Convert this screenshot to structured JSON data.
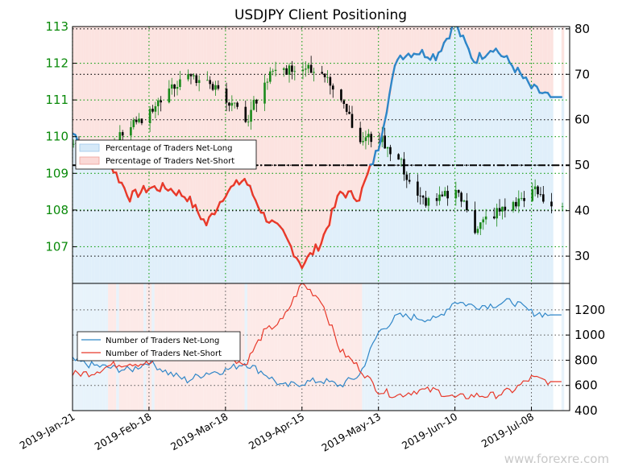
{
  "title": "USDJPY Client Positioning",
  "watermark": "www.forexre.com",
  "colors": {
    "long": "#2f86c8",
    "short": "#e8392a",
    "up_candle": "#1a8a1a",
    "down_candle": "#000000",
    "left_ticks": "#0a8a0a",
    "long_fill": "#d6e9f8",
    "short_fill": "#fbd9d6"
  },
  "x_labels": [
    "2019-Jan-21",
    "2019-Feb-18",
    "2019-Mar-18",
    "2019-Apr-15",
    "2019-May-13",
    "2019-Jun-10",
    "2019-Jul-08"
  ],
  "chart_data": [
    {
      "type": "line",
      "title": "USDJPY Client Positioning",
      "grid": true,
      "legend_position": "upper-left",
      "x_dates": [
        "2019-01-21",
        "2019-01-28",
        "2019-02-04",
        "2019-02-11",
        "2019-02-18",
        "2019-02-25",
        "2019-03-04",
        "2019-03-11",
        "2019-03-18",
        "2019-03-25",
        "2019-04-01",
        "2019-04-08",
        "2019-04-15",
        "2019-04-22",
        "2019-04-29",
        "2019-05-06",
        "2019-05-13",
        "2019-05-20",
        "2019-05-27",
        "2019-06-03",
        "2019-06-10",
        "2019-06-17",
        "2019-06-24",
        "2019-07-01",
        "2019-07-08",
        "2019-07-15"
      ],
      "left_axis": {
        "label": "",
        "ylim": [
          106,
          113
        ],
        "ticks": [
          107,
          108,
          109,
          110,
          111,
          112,
          113
        ]
      },
      "right_axis": {
        "label": "",
        "ylim": [
          24,
          80.5
        ],
        "ticks": [
          30,
          40,
          50,
          60,
          70,
          80
        ]
      },
      "series": [
        {
          "name": "Percentage of Traders Net-Long",
          "axis": "right",
          "values": [
            57,
            54,
            50,
            43,
            45,
            45,
            43,
            37,
            44,
            47,
            39,
            35,
            28,
            33,
            44,
            43,
            54,
            74,
            75,
            74,
            81,
            73,
            76,
            72,
            67,
            65
          ]
        },
        {
          "name": "Percentage of Traders Net-Short",
          "axis": "right",
          "values": [
            43,
            46,
            50,
            57,
            55,
            55,
            57,
            63,
            56,
            53,
            61,
            65,
            72,
            67,
            56,
            57,
            46,
            26,
            25,
            26,
            19,
            27,
            24,
            28,
            33,
            35
          ]
        },
        {
          "name": "USDJPY",
          "axis": "left",
          "values": [
            109.7,
            109.4,
            109.8,
            110.4,
            110.6,
            111.4,
            111.6,
            111.4,
            111.1,
            110.3,
            111.6,
            111.8,
            112.0,
            111.7,
            111.1,
            109.9,
            110.0,
            109.4,
            108.3,
            108.2,
            108.6,
            107.5,
            107.9,
            108.1,
            108.6,
            108.1
          ]
        }
      ],
      "reference_lines": [
        {
          "axis": "right",
          "value": 50,
          "style": "dash-dot"
        }
      ]
    },
    {
      "type": "line",
      "grid": true,
      "legend_position": "upper-left",
      "x_dates": [
        "2019-01-21",
        "2019-01-28",
        "2019-02-04",
        "2019-02-11",
        "2019-02-18",
        "2019-02-25",
        "2019-03-04",
        "2019-03-11",
        "2019-03-18",
        "2019-03-25",
        "2019-04-01",
        "2019-04-08",
        "2019-04-15",
        "2019-04-22",
        "2019-04-29",
        "2019-05-06",
        "2019-05-13",
        "2019-05-20",
        "2019-05-27",
        "2019-06-03",
        "2019-06-10",
        "2019-06-17",
        "2019-06-24",
        "2019-07-01",
        "2019-07-08",
        "2019-07-15"
      ],
      "right_axis": {
        "label": "",
        "ylim": [
          400,
          1410
        ],
        "ticks": [
          400,
          600,
          800,
          1000,
          1200
        ]
      },
      "series": [
        {
          "name": "Number of Traders Net-Long",
          "values": [
            800,
            760,
            740,
            720,
            790,
            700,
            640,
            700,
            720,
            780,
            700,
            590,
            620,
            640,
            600,
            680,
            1020,
            1150,
            1140,
            1120,
            1270,
            1230,
            1240,
            1270,
            1180,
            1160
          ]
        },
        {
          "name": "Number of Traders Net-Short",
          "values": [
            690,
            700,
            760,
            780,
            770,
            850,
            880,
            980,
            860,
            760,
            1020,
            1120,
            1410,
            1280,
            880,
            740,
            560,
            520,
            560,
            560,
            500,
            520,
            520,
            560,
            660,
            630
          ]
        }
      ]
    }
  ]
}
